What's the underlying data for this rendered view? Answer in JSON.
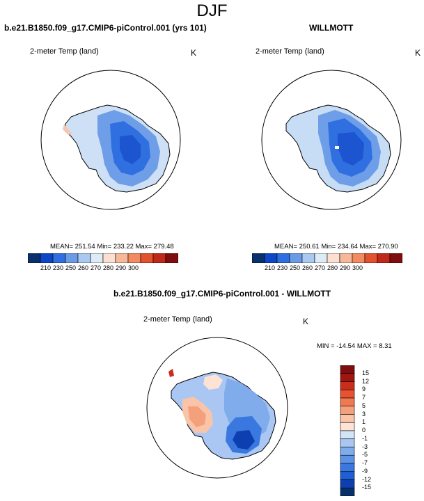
{
  "title": "DJF",
  "colors": {
    "abs_scale": [
      "#08306b",
      "#0d47c8",
      "#2f6fe0",
      "#6b9be6",
      "#a9c9f0",
      "#ddebf7",
      "#fbe0d2",
      "#f7b89a",
      "#f28a62",
      "#e2522d",
      "#c0281a",
      "#7f0d0d"
    ],
    "diff_scale": [
      "#08306b",
      "#0d3fb0",
      "#1f5fd6",
      "#3a78e0",
      "#5c93e8",
      "#80acec",
      "#a9c7f2",
      "#d4e4f7",
      "#fde3d6",
      "#f9c4a8",
      "#f5a07c",
      "#ef7a52",
      "#e55330",
      "#c92e1b",
      "#a0150f",
      "#7f0d0d"
    ]
  },
  "panels": [
    {
      "title": "b.e21.B1850.f09_g17.CMIP6-piControl.001 (yrs 101)",
      "variable": "2-meter Temp (land)",
      "unit": "K",
      "stats": "MEAN= 251.54  Min= 233.22  Max= 279.48"
    },
    {
      "title": "WILLMOTT",
      "variable": "2-meter Temp (land)",
      "unit": "K",
      "stats": "MEAN= 250.61  Min= 234.64  Max= 270.90"
    },
    {
      "title": "b.e21.B1850.f09_g17.CMIP6-piControl.001 - WILLMOTT",
      "variable": "2-meter Temp (land)",
      "unit": "K",
      "stats": "MIN = -14.54 MAX =  8.31"
    }
  ],
  "chart_data": [
    {
      "type": "heatmap",
      "title": "b.e21.B1850.f09_g17.CMIP6-piControl.001 (yrs 101)",
      "subtitle": "2-meter Temp (land)",
      "unit": "K",
      "colorbar_levels": [
        "210",
        "230",
        "250",
        "260",
        "270",
        "280",
        "290",
        "300"
      ],
      "mean": 251.54,
      "min": 233.22,
      "max": 279.48
    },
    {
      "type": "heatmap",
      "title": "WILLMOTT",
      "subtitle": "2-meter Temp (land)",
      "unit": "K",
      "colorbar_levels": [
        "210",
        "230",
        "250",
        "260",
        "270",
        "280",
        "290",
        "300"
      ],
      "mean": 250.61,
      "min": 234.64,
      "max": 270.9
    },
    {
      "type": "heatmap",
      "title": "b.e21.B1850.f09_g17.CMIP6-piControl.001 - WILLMOTT",
      "subtitle": "2-meter Temp (land)",
      "unit": "K",
      "colorbar_levels": [
        "15",
        "12",
        "9",
        "7",
        "5",
        "3",
        "1",
        "0",
        "-1",
        "-3",
        "-5",
        "-7",
        "-9",
        "-12",
        "-15"
      ],
      "min": -14.54,
      "max": 8.31
    }
  ]
}
